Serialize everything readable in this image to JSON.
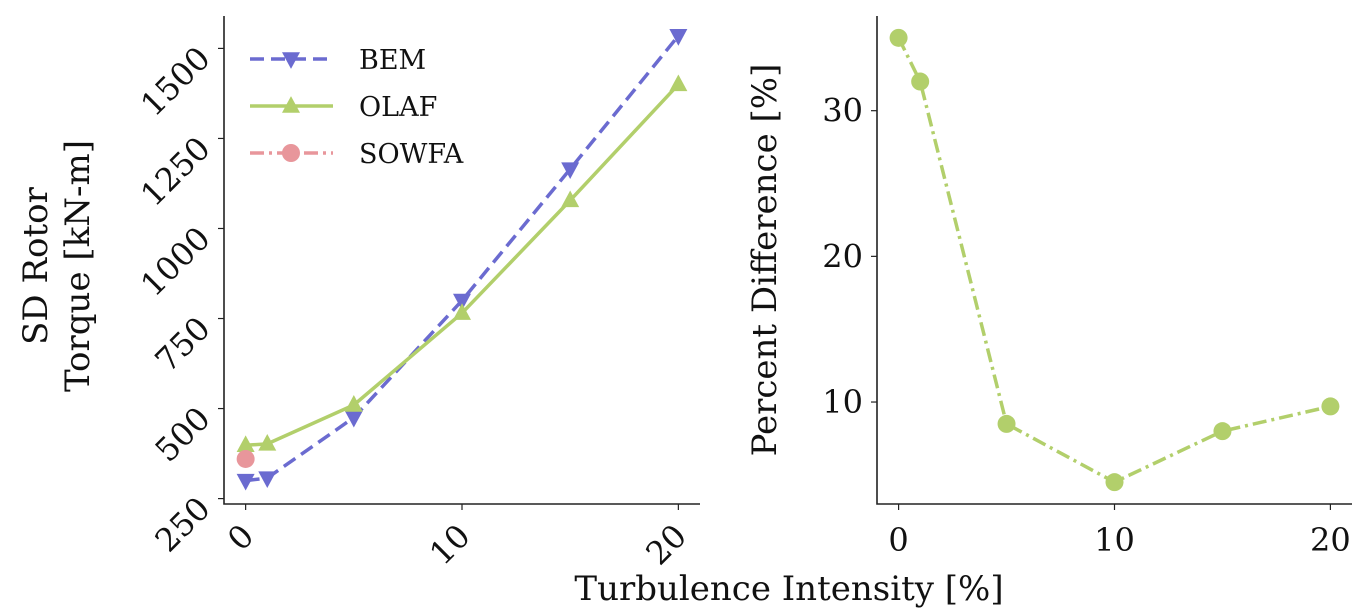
{
  "chart_data": [
    {
      "type": "line",
      "xlabel": "Turbulence Intensity [%]",
      "ylabel": [
        "SD Rotor",
        "Torque [kN-m]"
      ],
      "xlim": [
        -1,
        21
      ],
      "ylim": [
        235,
        1590
      ],
      "xticks": [
        0,
        10,
        20
      ],
      "yticks": [
        250,
        500,
        750,
        1000,
        1250,
        1500
      ],
      "grid": false,
      "legend_position": "top-left",
      "series": [
        {
          "name": "BEM",
          "color": "#6b6bd0",
          "style": "dashed",
          "marker": "triangle-down",
          "x": [
            0,
            1,
            5,
            10,
            15,
            20
          ],
          "y": [
            300,
            307,
            475,
            800,
            1165,
            1535
          ]
        },
        {
          "name": "OLAF",
          "color": "#b2cf6b",
          "style": "solid",
          "marker": "triangle-up",
          "x": [
            0,
            1,
            5,
            10,
            15,
            20
          ],
          "y": [
            398,
            402,
            510,
            765,
            1078,
            1400
          ]
        },
        {
          "name": "SOWFA",
          "color": "#e8969b",
          "style": "dashdot",
          "marker": "circle",
          "x": [
            0
          ],
          "y": [
            360
          ]
        }
      ]
    },
    {
      "type": "line",
      "xlabel": "",
      "ylabel": "Percent Difference [%]",
      "xlim": [
        -1,
        21
      ],
      "ylim": [
        3,
        36.5
      ],
      "xticks": [
        0,
        10,
        20
      ],
      "yticks": [
        10,
        20,
        30
      ],
      "grid": false,
      "series": [
        {
          "color": "#b2cf6b",
          "style": "dashdot",
          "marker": "circle",
          "x": [
            0,
            1,
            5,
            10,
            15,
            20
          ],
          "y": [
            35.0,
            32.0,
            8.5,
            4.5,
            8.0,
            9.7
          ]
        }
      ]
    }
  ]
}
